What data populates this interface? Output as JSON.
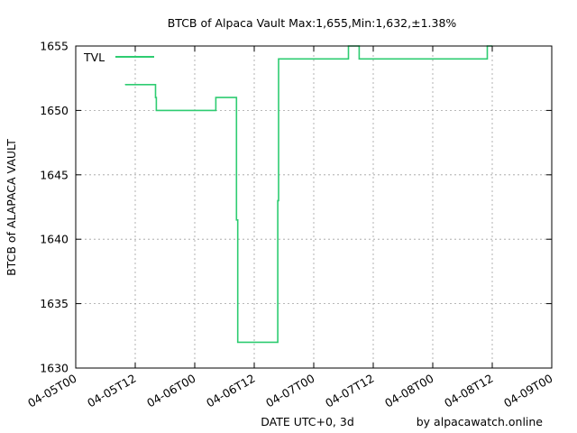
{
  "chart_data": {
    "type": "line",
    "title": "BTCB of Alpaca Vault Max:1,655,Min:1,632,±1.38%",
    "xlabel": "DATE UTC+0, 3d",
    "ylabel": "BTCB of ALAPACA VAULT",
    "credit": "by alpacawatch.online",
    "ylim": [
      1630,
      1655
    ],
    "yticks": [
      1630,
      1635,
      1640,
      1645,
      1650,
      1655
    ],
    "xlim": [
      "2021-04-05T00:00",
      "2021-04-09T00:00"
    ],
    "xticks": [
      "04-05T00",
      "04-05T12",
      "04-06T00",
      "04-06T12",
      "04-07T00",
      "04-07T12",
      "04-08T00",
      "04-08T12",
      "04-09T00"
    ],
    "grid": true,
    "legend_position": "top-left",
    "color": "#2ecc71",
    "series": [
      {
        "name": "TVL",
        "step": true,
        "points": [
          [
            "2021-04-05T10:00",
            1652
          ],
          [
            "2021-04-05T15:55",
            1652
          ],
          [
            "2021-04-05T16:05",
            1651
          ],
          [
            "2021-04-05T16:15",
            1650
          ],
          [
            "2021-04-06T04:10",
            1650
          ],
          [
            "2021-04-06T04:15",
            1651
          ],
          [
            "2021-04-06T08:20",
            1651
          ],
          [
            "2021-04-06T08:25",
            1641.5
          ],
          [
            "2021-04-06T08:40",
            1632
          ],
          [
            "2021-04-06T16:40",
            1632
          ],
          [
            "2021-04-06T16:45",
            1643
          ],
          [
            "2021-04-06T16:55",
            1654
          ],
          [
            "2021-04-07T06:50",
            1654
          ],
          [
            "2021-04-07T07:00",
            1655
          ],
          [
            "2021-04-07T09:00",
            1655
          ],
          [
            "2021-04-07T09:10",
            1654
          ],
          [
            "2021-04-08T10:55",
            1654
          ],
          [
            "2021-04-08T11:00",
            1655
          ],
          [
            "2021-04-08T12:00",
            1655
          ]
        ]
      }
    ]
  }
}
